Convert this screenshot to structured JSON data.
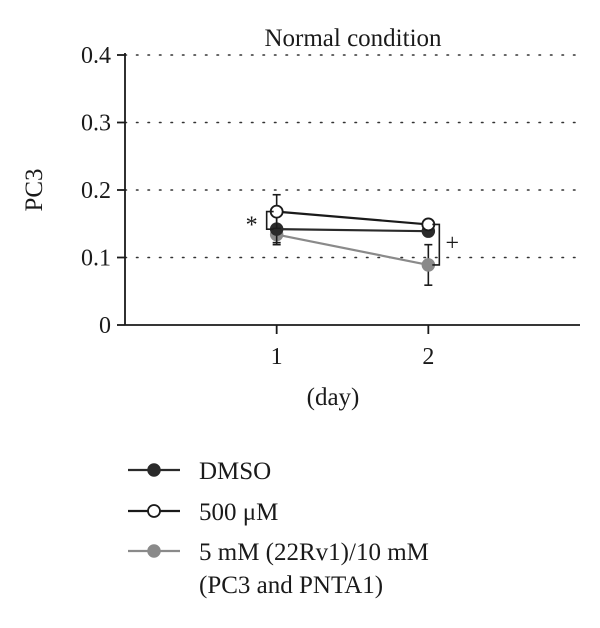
{
  "chart_data": {
    "type": "line",
    "title": "Normal condition",
    "ylabel": "PC3",
    "xlabel": "(day)",
    "x": [
      1,
      2
    ],
    "xticks": [
      "1",
      "2"
    ],
    "xlim": [
      0,
      3
    ],
    "ylim": [
      0,
      0.4
    ],
    "yticks": [
      "0",
      "0.1",
      "0.2",
      "0.3",
      "0.4"
    ],
    "grid": "horizontal dotted",
    "legend_position": "bottom",
    "series": [
      {
        "name": "DMSO",
        "values": [
          0.142,
          0.139
        ],
        "errors": [
          0.02,
          0.004
        ],
        "color": "#2a2a2a",
        "marker": "filled-black"
      },
      {
        "name": "500 μM",
        "values": [
          0.168,
          0.149
        ],
        "errors": [
          0.025,
          0.004
        ],
        "color": "#1a1a1a",
        "marker": "open"
      },
      {
        "name": "5 mM (22Rv1)/10 mM (PC3 and PNTA1)",
        "values": [
          0.134,
          0.089
        ],
        "errors": [
          0.015,
          0.03
        ],
        "color": "#8a8a8a",
        "marker": "filled-gray"
      }
    ],
    "annotations": [
      {
        "text": "*",
        "note": "day 1"
      },
      {
        "text": "+",
        "note": "day 2"
      }
    ]
  },
  "legend": {
    "items": [
      {
        "label": "DMSO"
      },
      {
        "label": "500 μM"
      },
      {
        "label": "5 mM (22Rv1)/10 mM",
        "label2": "(PC3 and PNTA1)"
      }
    ]
  }
}
